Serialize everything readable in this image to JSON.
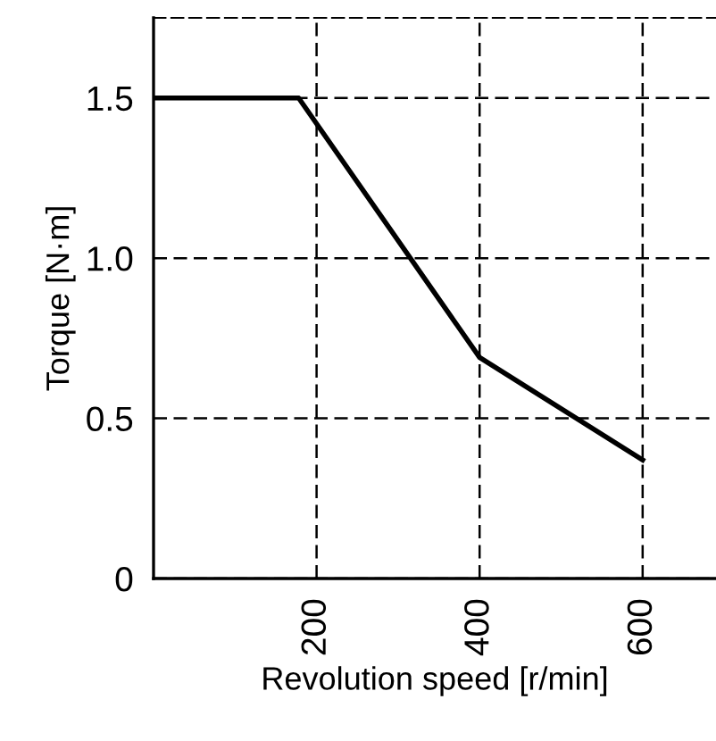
{
  "chart_data": {
    "type": "line",
    "xlabel": "Revolution speed [r/min]",
    "ylabel": "Torque [N·m]",
    "x": [
      0,
      178,
      400,
      600
    ],
    "series": [
      {
        "color": "#000000",
        "values": [
          1.5,
          1.5,
          0.69,
          0.37
        ]
      }
    ],
    "xlim": [
      0,
      690
    ],
    "ylim": [
      0,
      1.75
    ],
    "xticks": [
      200,
      400,
      600
    ],
    "yticks": [
      0,
      0.5,
      {
        "value": 1,
        "label": "1.0"
      },
      1.5
    ],
    "grid": true,
    "marker": "none",
    "line_style": "solid"
  }
}
